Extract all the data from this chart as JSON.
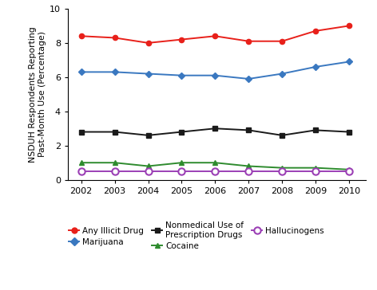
{
  "years": [
    2002,
    2003,
    2004,
    2005,
    2006,
    2007,
    2008,
    2009,
    2010
  ],
  "any_illicit": [
    8.4,
    8.3,
    8.0,
    8.2,
    8.4,
    8.1,
    8.1,
    8.7,
    9.0
  ],
  "marijuana": [
    6.3,
    6.3,
    6.2,
    6.1,
    6.1,
    5.9,
    6.2,
    6.6,
    6.9
  ],
  "nonmedical": [
    2.8,
    2.8,
    2.6,
    2.8,
    3.0,
    2.9,
    2.6,
    2.9,
    2.8
  ],
  "cocaine": [
    1.0,
    1.0,
    0.8,
    1.0,
    1.0,
    0.8,
    0.7,
    0.7,
    0.6
  ],
  "hallucinogens": [
    0.5,
    0.5,
    0.5,
    0.5,
    0.5,
    0.5,
    0.5,
    0.5,
    0.5
  ],
  "colors": {
    "any_illicit": "#e8201a",
    "marijuana": "#3a78c0",
    "nonmedical": "#1a1a1a",
    "cocaine": "#2e8b2e",
    "hallucinogens": "#9b3fb5"
  },
  "ylabel": "NSDUH Respondents Reporting\nPast-Month Use (Percentage)",
  "ylim": [
    0,
    10
  ],
  "yticks": [
    0,
    2,
    4,
    6,
    8,
    10
  ],
  "legend": {
    "any_illicit": "Any Illicit Drug",
    "marijuana": "Marijuana",
    "nonmedical": "Nonmedical Use of\nPrescription Drugs",
    "cocaine": "Cocaine",
    "hallucinogens": "Hallucinogens"
  },
  "background_color": "#ffffff"
}
